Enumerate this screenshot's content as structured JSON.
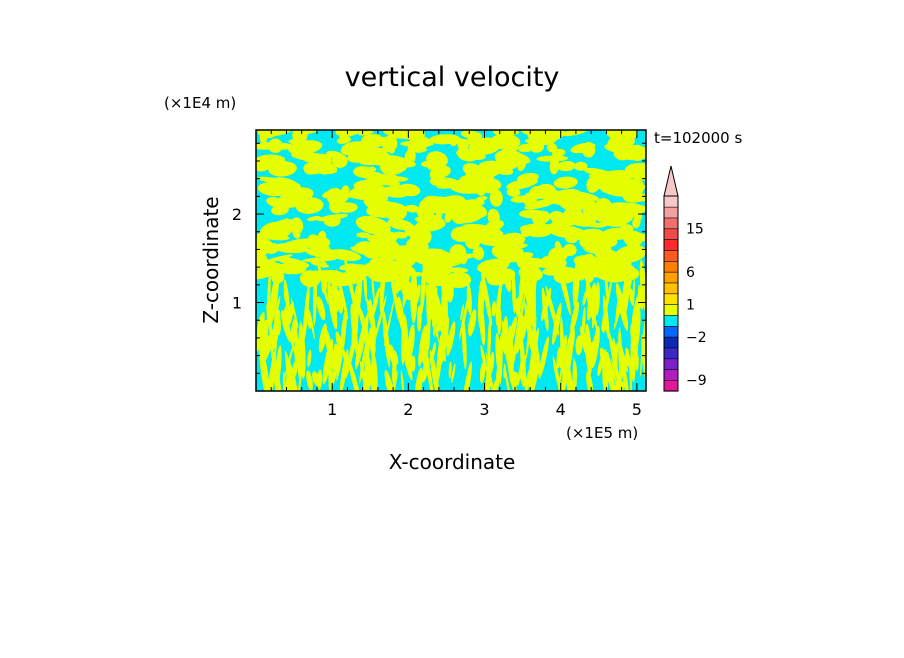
{
  "chart_data": {
    "type": "heatmap",
    "title": "vertical velocity",
    "xlabel": "X-coordinate",
    "ylabel": "Z-coordinate",
    "x_unit": "(×1E5 m)",
    "y_unit": "(×1E4 m)",
    "time_label": "t=102000 s",
    "xlim": [
      0,
      5.12
    ],
    "ylim": [
      0,
      2.95
    ],
    "x_ticks": [
      1,
      2,
      3,
      4,
      5
    ],
    "y_ticks": [
      1,
      2
    ],
    "colorbar": {
      "tick_labels": [
        "15",
        "6",
        "1",
        "−2",
        "−9"
      ],
      "tick_values": [
        15,
        6,
        1,
        -2,
        -9
      ],
      "extend_top": true,
      "colors": [
        "#e2189a",
        "#b01ec0",
        "#7a22c8",
        "#3a28c8",
        "#0a2ab4",
        "#0068ff",
        "#00e8f0",
        "#e6ff00",
        "#ffe000",
        "#ffc000",
        "#ffa000",
        "#ff7e00",
        "#ff5a20",
        "#ff2a2a",
        "#f04a4a",
        "#f07070",
        "#f4a0a0",
        "#f8c8c8"
      ]
    },
    "field_colors": {
      "negative": "#00e8f0",
      "positive": "#e6ff00"
    }
  }
}
